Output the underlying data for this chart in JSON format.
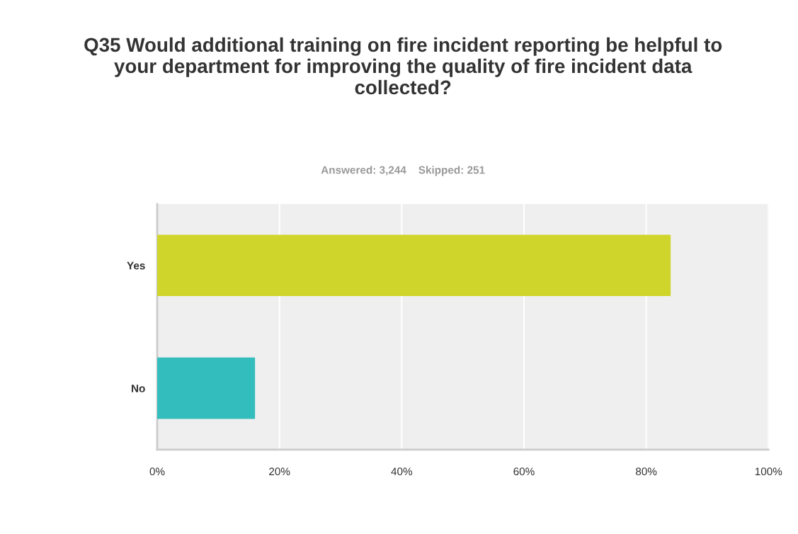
{
  "chart_data": {
    "type": "bar",
    "orientation": "horizontal",
    "title": "Q35 Would additional training on fire incident reporting be helpful to your department for improving the quality of fire incident data collected?",
    "subtitle": "Answered: 3,244    Skipped: 251",
    "categories": [
      "Yes",
      "No"
    ],
    "values": [
      84,
      16
    ],
    "colors": [
      "#cfd52a",
      "#33bdbd"
    ],
    "xlim": [
      0,
      100
    ],
    "xticks": [
      {
        "value": 0,
        "label": "0%"
      },
      {
        "value": 20,
        "label": "20%"
      },
      {
        "value": 40,
        "label": "40%"
      },
      {
        "value": 60,
        "label": "60%"
      },
      {
        "value": 80,
        "label": "80%"
      },
      {
        "value": 100,
        "label": "100%"
      }
    ],
    "grid": "x"
  }
}
